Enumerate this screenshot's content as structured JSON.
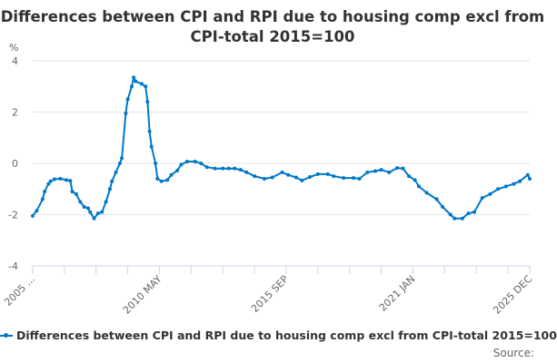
{
  "chart_data": {
    "type": "line",
    "title": "Differences between CPI and RPI due to housing comp excl from CPI-total 2015=100",
    "ylabel": "%",
    "ylim": [
      -4,
      4
    ],
    "yticks": [
      4,
      2,
      0,
      -2,
      -4
    ],
    "xlim": [
      "2005-01",
      "2025-12"
    ],
    "xtick_labels": [
      {
        "date": "2005-01",
        "label": "2005 ..."
      },
      {
        "date": "2010-05",
        "label": "2010 MAY"
      },
      {
        "date": "2015-09",
        "label": "2015 SEP"
      },
      {
        "date": "2021-01",
        "label": "2021 JAN"
      },
      {
        "date": "2025-12",
        "label": "2025 DEC"
      }
    ],
    "grid": true,
    "legend_position": "bottom",
    "series": [
      {
        "name": "Differences between CPI and RPI due to housing comp excl from CPI-total 2015=100",
        "color": "#0077c8",
        "points": [
          [
            "2005-01",
            -2.05
          ],
          [
            "2005-03",
            -1.85
          ],
          [
            "2005-06",
            -1.4
          ],
          [
            "2005-07",
            -1.1
          ],
          [
            "2005-09",
            -0.8
          ],
          [
            "2005-10",
            -0.7
          ],
          [
            "2005-12",
            -0.62
          ],
          [
            "2006-03",
            -0.6
          ],
          [
            "2006-06",
            -0.65
          ],
          [
            "2006-08",
            -0.68
          ],
          [
            "2006-09",
            -1.1
          ],
          [
            "2006-11",
            -1.2
          ],
          [
            "2007-01",
            -1.5
          ],
          [
            "2007-03",
            -1.7
          ],
          [
            "2007-05",
            -1.75
          ],
          [
            "2007-06",
            -1.9
          ],
          [
            "2007-08",
            -2.15
          ],
          [
            "2007-10",
            -1.95
          ],
          [
            "2007-12",
            -1.9
          ],
          [
            "2008-02",
            -1.5
          ],
          [
            "2008-04",
            -1.0
          ],
          [
            "2008-05",
            -0.7
          ],
          [
            "2008-07",
            -0.35
          ],
          [
            "2008-09",
            0
          ],
          [
            "2008-10",
            0.2
          ],
          [
            "2008-12",
            1.95
          ],
          [
            "2009-01",
            2.5
          ],
          [
            "2009-03",
            3.0
          ],
          [
            "2009-04",
            3.35
          ],
          [
            "2009-05",
            3.2
          ],
          [
            "2009-08",
            3.1
          ],
          [
            "2009-10",
            3.0
          ],
          [
            "2009-11",
            2.4
          ],
          [
            "2009-12",
            1.25
          ],
          [
            "2010-01",
            0.65
          ],
          [
            "2010-03",
            0
          ],
          [
            "2010-04",
            -0.6
          ],
          [
            "2010-06",
            -0.7
          ],
          [
            "2010-09",
            -0.65
          ],
          [
            "2010-11",
            -0.45
          ],
          [
            "2011-02",
            -0.28
          ],
          [
            "2011-04",
            -0.05
          ],
          [
            "2011-07",
            0.07
          ],
          [
            "2011-11",
            0.07
          ],
          [
            "2012-02",
            0
          ],
          [
            "2012-05",
            -0.15
          ],
          [
            "2012-09",
            -0.2
          ],
          [
            "2013-01",
            -0.2
          ],
          [
            "2013-04",
            -0.2
          ],
          [
            "2013-07",
            -0.2
          ],
          [
            "2013-10",
            -0.25
          ],
          [
            "2014-01",
            -0.35
          ],
          [
            "2014-05",
            -0.5
          ],
          [
            "2014-10",
            -0.6
          ],
          [
            "2015-02",
            -0.55
          ],
          [
            "2015-07",
            -0.35
          ],
          [
            "2015-10",
            -0.45
          ],
          [
            "2016-02",
            -0.55
          ],
          [
            "2016-05",
            -0.67
          ],
          [
            "2016-09",
            -0.53
          ],
          [
            "2017-01",
            -0.42
          ],
          [
            "2017-06",
            -0.42
          ],
          [
            "2017-09",
            -0.5
          ],
          [
            "2018-02",
            -0.57
          ],
          [
            "2018-07",
            -0.57
          ],
          [
            "2018-10",
            -0.6
          ],
          [
            "2019-02",
            -0.35
          ],
          [
            "2019-06",
            -0.3
          ],
          [
            "2019-09",
            -0.25
          ],
          [
            "2020-01",
            -0.35
          ],
          [
            "2020-05",
            -0.18
          ],
          [
            "2020-08",
            -0.2
          ],
          [
            "2020-11",
            -0.5
          ],
          [
            "2021-02",
            -0.65
          ],
          [
            "2021-04",
            -0.9
          ],
          [
            "2021-08",
            -1.15
          ],
          [
            "2022-01",
            -1.4
          ],
          [
            "2022-04",
            -1.7
          ],
          [
            "2022-08",
            -2.0
          ],
          [
            "2022-10",
            -2.15
          ],
          [
            "2023-02",
            -2.15
          ],
          [
            "2023-05",
            -1.95
          ],
          [
            "2023-08",
            -1.9
          ],
          [
            "2023-12",
            -1.35
          ],
          [
            "2024-04",
            -1.2
          ],
          [
            "2024-08",
            -1.0
          ],
          [
            "2024-12",
            -0.9
          ],
          [
            "2025-04",
            -0.8
          ],
          [
            "2025-07",
            -0.7
          ],
          [
            "2025-11",
            -0.45
          ],
          [
            "2025-12",
            -0.6
          ]
        ]
      }
    ]
  },
  "footer": {
    "source": "Source:"
  }
}
